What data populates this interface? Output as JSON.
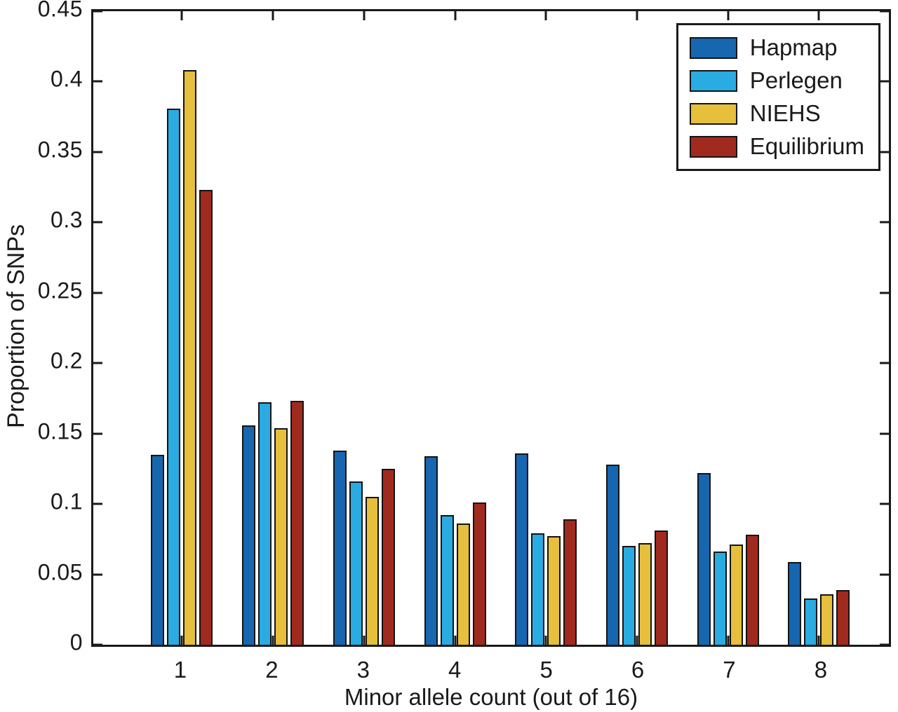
{
  "chart_data": {
    "type": "bar",
    "title": "",
    "xlabel": "Minor allele count (out of 16)",
    "ylabel": "Proportion of SNPs",
    "categories": [
      "1",
      "2",
      "3",
      "4",
      "5",
      "6",
      "7",
      "8"
    ],
    "series": [
      {
        "name": "Hapmap",
        "color": "#1766b0",
        "values": [
          0.134,
          0.155,
          0.137,
          0.133,
          0.135,
          0.127,
          0.121,
          0.058
        ]
      },
      {
        "name": "Perlegen",
        "color": "#2aabe2",
        "values": [
          0.38,
          0.171,
          0.115,
          0.091,
          0.078,
          0.069,
          0.065,
          0.032
        ]
      },
      {
        "name": "NIEHS",
        "color": "#e6bf3c",
        "values": [
          0.407,
          0.153,
          0.104,
          0.085,
          0.076,
          0.071,
          0.07,
          0.035
        ]
      },
      {
        "name": "Equilibrium",
        "color": "#a12a1e",
        "values": [
          0.322,
          0.172,
          0.124,
          0.1,
          0.088,
          0.08,
          0.077,
          0.038
        ]
      }
    ],
    "ylim": [
      0,
      0.45
    ],
    "yticks": [
      "0",
      "0.05",
      "0.1",
      "0.15",
      "0.2",
      "0.25",
      "0.3",
      "0.35",
      "0.4",
      "0.45"
    ],
    "grid": false,
    "legend_position": "top-right",
    "frame_color": "#1a1a1a",
    "background_color": "#ffffff"
  }
}
